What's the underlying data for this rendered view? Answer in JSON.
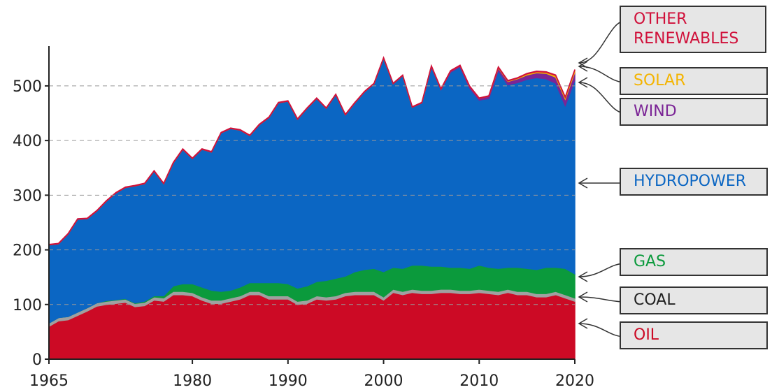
{
  "chart_data": {
    "type": "stacked_area",
    "x": [
      1965,
      1966,
      1967,
      1968,
      1969,
      1970,
      1971,
      1972,
      1973,
      1974,
      1975,
      1976,
      1977,
      1978,
      1979,
      1980,
      1981,
      1982,
      1983,
      1984,
      1985,
      1986,
      1987,
      1988,
      1989,
      1990,
      1991,
      1992,
      1993,
      1994,
      1995,
      1996,
      1997,
      1998,
      1999,
      2000,
      2001,
      2002,
      2003,
      2004,
      2005,
      2006,
      2007,
      2008,
      2009,
      2010,
      2011,
      2012,
      2013,
      2014,
      2015,
      2016,
      2017,
      2018,
      2019,
      2020
    ],
    "xlim": [
      1965,
      2020
    ],
    "xticks": [
      1965,
      1980,
      1990,
      2000,
      2010,
      2020
    ],
    "ylim": [
      0,
      560
    ],
    "yticks": [
      0,
      100,
      200,
      300,
      400,
      500
    ],
    "grid": true,
    "series": [
      {
        "name": "OIL",
        "color": "#cc0a25",
        "values": [
          60,
          70,
          72,
          80,
          88,
          97,
          100,
          102,
          104,
          96,
          98,
          108,
          106,
          118,
          118,
          116,
          108,
          102,
          102,
          106,
          110,
          118,
          118,
          110,
          110,
          110,
          100,
          102,
          110,
          108,
          110,
          116,
          118,
          118,
          118,
          108,
          122,
          118,
          122,
          120,
          120,
          122,
          122,
          120,
          120,
          122,
          120,
          118,
          122,
          118,
          118,
          114,
          114,
          118,
          112,
          106
        ]
      },
      {
        "name": "COAL",
        "color": "#a0a0a0",
        "values": [
          6,
          6,
          6,
          6,
          6,
          6,
          6,
          6,
          6,
          6,
          6,
          6,
          6,
          6,
          6,
          6,
          6,
          6,
          6,
          6,
          6,
          6,
          6,
          6,
          6,
          6,
          6,
          6,
          6,
          6,
          6,
          6,
          6,
          6,
          6,
          6,
          6,
          6,
          6,
          6,
          6,
          6,
          6,
          6,
          6,
          6,
          6,
          6,
          6,
          6,
          6,
          6,
          6,
          6,
          6,
          6
        ]
      },
      {
        "name": "GAS",
        "color": "#0b9a3c",
        "values": [
          0,
          0,
          0,
          0,
          0,
          0,
          1,
          1,
          1,
          1,
          2,
          2,
          4,
          10,
          14,
          16,
          18,
          18,
          16,
          14,
          16,
          16,
          16,
          24,
          24,
          22,
          24,
          26,
          26,
          30,
          32,
          30,
          36,
          40,
          42,
          46,
          40,
          42,
          44,
          46,
          44,
          42,
          40,
          42,
          40,
          44,
          42,
          42,
          40,
          44,
          42,
          44,
          48,
          44,
          48,
          44
        ]
      },
      {
        "name": "HYDROPOWER",
        "color": "#0b66c3",
        "values": [
          143,
          135,
          151,
          170,
          163,
          168,
          182,
          195,
          203,
          214,
          215,
          228,
          205,
          225,
          246,
          229,
          252,
          253,
          290,
          296,
          287,
          269,
          289,
          302,
          329,
          334,
          309,
          325,
          335,
          315,
          336,
          295,
          309,
          325,
          338,
          391,
          336,
          353,
          289,
          297,
          365,
          323,
          357,
          367,
          330,
          302,
          309,
          362,
          334,
          338,
          346,
          351,
          345,
          337,
          298,
          355
        ]
      },
      {
        "name": "WIND",
        "color": "#7b2596",
        "values": [
          0,
          0,
          0,
          0,
          0,
          0,
          0,
          0,
          0,
          0,
          0,
          0,
          0,
          0,
          0,
          0,
          0,
          0,
          0,
          0,
          0,
          0,
          0,
          0,
          0,
          0,
          0,
          0,
          0,
          0,
          0,
          0,
          0,
          0,
          0,
          0,
          0,
          0,
          0,
          0,
          1,
          1,
          2,
          2,
          3,
          3,
          4,
          5,
          6,
          7,
          8,
          9,
          10,
          11,
          12,
          14
        ]
      },
      {
        "name": "SOLAR",
        "color": "#f4b400",
        "values": [
          0,
          0,
          0,
          0,
          0,
          0,
          0,
          0,
          0,
          0,
          0,
          0,
          0,
          0,
          0,
          0,
          0,
          0,
          0,
          0,
          0,
          0,
          0,
          0,
          0,
          0,
          0,
          0,
          0,
          0,
          0,
          0,
          0,
          0,
          0,
          0,
          0,
          0,
          0,
          0,
          0,
          0,
          0,
          0,
          0,
          0,
          0,
          1,
          1,
          1,
          2,
          2,
          2,
          3,
          3,
          4
        ]
      },
      {
        "name": "OTHER RENEWABLES",
        "color": "#d0103a",
        "values": [
          1,
          1,
          1,
          1,
          1,
          1,
          1,
          1,
          1,
          1,
          1,
          1,
          1,
          1,
          1,
          1,
          1,
          1,
          1,
          1,
          1,
          1,
          1,
          1,
          1,
          1,
          1,
          1,
          1,
          1,
          1,
          1,
          1,
          1,
          1,
          1,
          1,
          1,
          1,
          1,
          1,
          1,
          1,
          1,
          1,
          1,
          1,
          1,
          1,
          1,
          1,
          1,
          1,
          1,
          1,
          1
        ]
      }
    ]
  }
}
